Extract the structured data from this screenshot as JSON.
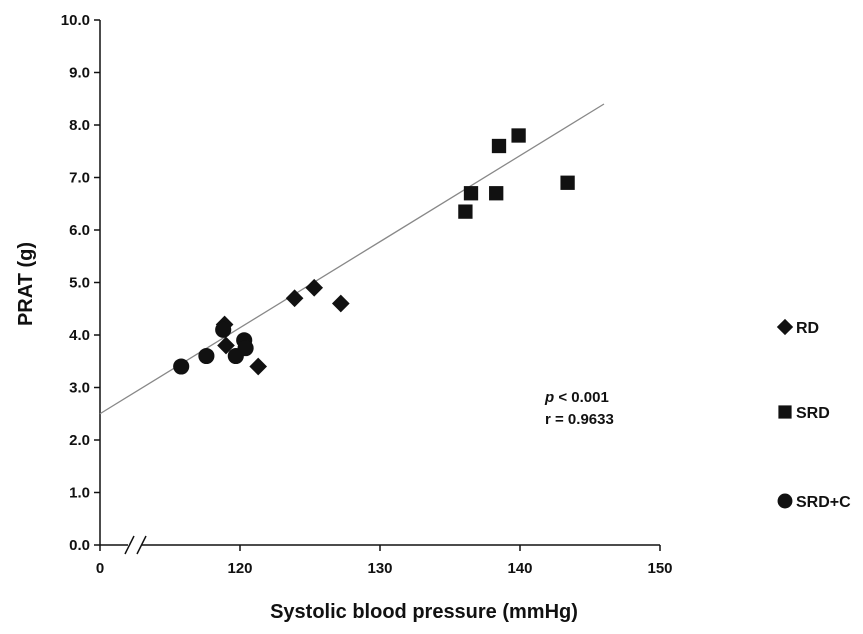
{
  "chart_data": {
    "type": "scatter",
    "xlabel": "Systolic blood pressure (mmHg)",
    "ylabel": "PRAT (g)",
    "xlim": [
      100,
      150
    ],
    "ylim": [
      0,
      10
    ],
    "x_axis_break": true,
    "x_ticks": [
      "0",
      "120",
      "130",
      "140",
      "150"
    ],
    "y_ticks": [
      "0.0",
      "1.0",
      "2.0",
      "3.0",
      "4.0",
      "5.0",
      "6.0",
      "7.0",
      "8.0",
      "9.0",
      "10.0"
    ],
    "grid": false,
    "legend_position": "right",
    "series": [
      {
        "name": "RD",
        "marker": "diamond",
        "color": "#111111",
        "points": [
          {
            "x": 118.9,
            "y": 4.2
          },
          {
            "x": 119.0,
            "y": 3.8
          },
          {
            "x": 121.3,
            "y": 3.4
          },
          {
            "x": 123.9,
            "y": 4.7
          },
          {
            "x": 125.3,
            "y": 4.9
          },
          {
            "x": 127.2,
            "y": 4.6
          }
        ]
      },
      {
        "name": "SRD",
        "marker": "square",
        "color": "#111111",
        "points": [
          {
            "x": 136.1,
            "y": 6.35
          },
          {
            "x": 136.5,
            "y": 6.7
          },
          {
            "x": 138.3,
            "y": 6.7
          },
          {
            "x": 138.5,
            "y": 7.6
          },
          {
            "x": 139.9,
            "y": 7.8
          },
          {
            "x": 143.4,
            "y": 6.9
          }
        ]
      },
      {
        "name": "SRD+C",
        "marker": "circle",
        "color": "#111111",
        "points": [
          {
            "x": 115.8,
            "y": 3.4
          },
          {
            "x": 117.6,
            "y": 3.6
          },
          {
            "x": 118.8,
            "y": 4.1
          },
          {
            "x": 119.7,
            "y": 3.6
          },
          {
            "x": 120.3,
            "y": 3.9
          },
          {
            "x": 120.4,
            "y": 3.75
          }
        ]
      }
    ],
    "trendline": {
      "color": "#888888",
      "start": {
        "x": 100,
        "y": 2.5
      },
      "end": {
        "x": 146,
        "y": 8.4
      }
    },
    "annotations": {
      "p_label": "p",
      "p_rest": " < 0.001",
      "r_text": "r = 0.9633"
    }
  }
}
